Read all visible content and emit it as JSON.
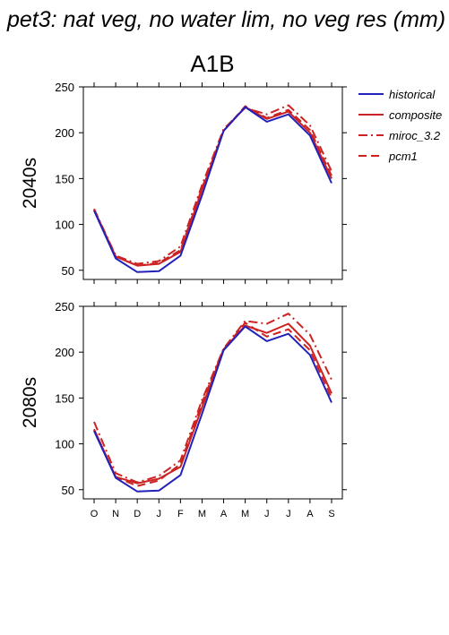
{
  "title": "pet3: nat veg, no water lim, no veg res (mm)",
  "scenario": "A1B",
  "legend": {
    "placement": "right",
    "entries": [
      {
        "label": "historical",
        "color": "#2222bb",
        "dash": "solid"
      },
      {
        "label": "composite",
        "color": "#cc2222",
        "dash": "solid"
      },
      {
        "label": "miroc_3.2",
        "color": "#cc2222",
        "dash": "dashdot"
      },
      {
        "label": "pcm1",
        "color": "#cc2222",
        "dash": "dashed"
      }
    ]
  },
  "chart_data": [
    {
      "type": "line",
      "panel_label": "2040s",
      "categories": [
        "O",
        "N",
        "D",
        "J",
        "F",
        "M",
        "A",
        "M",
        "J",
        "J",
        "A",
        "S"
      ],
      "ylim": [
        40,
        250
      ],
      "yticks": [
        50,
        100,
        150,
        200,
        250
      ],
      "series": [
        {
          "name": "historical",
          "values": [
            115,
            63,
            48,
            49,
            66,
            132,
            202,
            228,
            212,
            220,
            197,
            145
          ]
        },
        {
          "name": "composite",
          "values": [
            116,
            65,
            55,
            57,
            70,
            138,
            202,
            228,
            215,
            223,
            200,
            150
          ]
        },
        {
          "name": "miroc_3.2",
          "values": [
            117,
            66,
            57,
            60,
            76,
            143,
            204,
            227,
            220,
            230,
            208,
            158
          ]
        },
        {
          "name": "pcm1",
          "values": [
            116,
            65,
            55,
            58,
            72,
            140,
            202,
            229,
            216,
            225,
            203,
            153
          ]
        }
      ]
    },
    {
      "type": "line",
      "panel_label": "2080s",
      "categories": [
        "O",
        "N",
        "D",
        "J",
        "F",
        "M",
        "A",
        "M",
        "J",
        "J",
        "A",
        "S"
      ],
      "ylim": [
        40,
        250
      ],
      "yticks": [
        50,
        100,
        150,
        200,
        250
      ],
      "series": [
        {
          "name": "historical",
          "values": [
            114,
            63,
            48,
            49,
            66,
            133,
            202,
            228,
            212,
            220,
            197,
            145
          ]
        },
        {
          "name": "composite",
          "values": [
            116,
            64,
            57,
            62,
            75,
            140,
            203,
            229,
            221,
            231,
            207,
            155
          ]
        },
        {
          "name": "miroc_3.2",
          "values": [
            124,
            68,
            58,
            65,
            82,
            148,
            204,
            234,
            231,
            242,
            219,
            170
          ]
        },
        {
          "name": "pcm1",
          "values": [
            115,
            64,
            54,
            60,
            78,
            145,
            203,
            232,
            217,
            225,
            202,
            150
          ]
        }
      ]
    }
  ]
}
